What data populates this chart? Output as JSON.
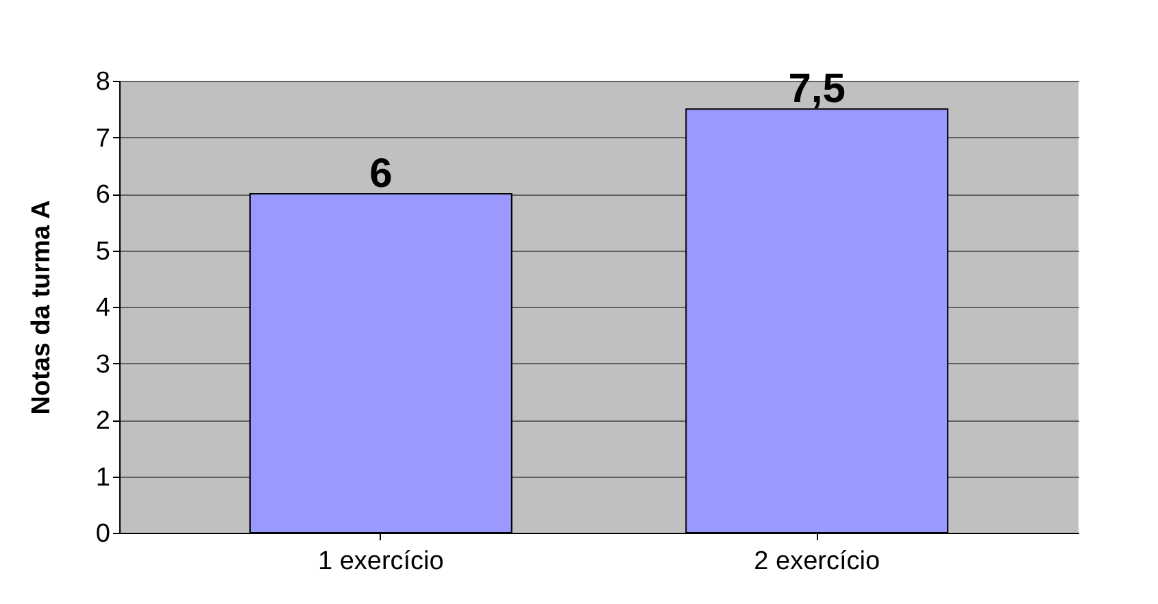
{
  "chart_data": {
    "type": "bar",
    "ylabel": "Notas da turma A",
    "categories": [
      "1 exercício",
      "2 exercício"
    ],
    "values": [
      6,
      7.5
    ],
    "color": "#9999ff",
    "value_labels": [
      "6",
      "7,5"
    ],
    "ylim": [
      0,
      8
    ],
    "yticks": [
      0,
      1,
      2,
      3,
      4,
      5,
      6,
      7,
      8
    ],
    "grid": "y"
  }
}
